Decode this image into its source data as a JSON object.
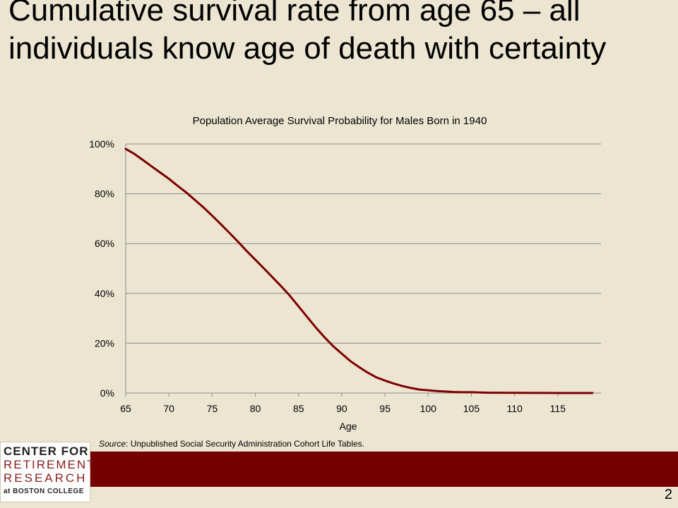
{
  "slide": {
    "title": "Cumulative survival rate from age 65 – all individuals know age of death with certainty",
    "page_number": "2",
    "source_prefix": "Source",
    "source_text": ": Unpublished Social Security Administration Cohort Life Tables."
  },
  "logo": {
    "line1": "CENTER FOR",
    "line2": "RETIREMENT",
    "line3": "RESEARCH",
    "line4": "at BOSTON COLLEGE"
  },
  "colors": {
    "background": "#ebe5d1",
    "series_line": "#7f0000",
    "gridline": "#8c8c8c",
    "footer_band": "#750000"
  },
  "chart_data": {
    "type": "line",
    "title": "Population Average Survival Probability for Males Born in 1940",
    "xlabel": "Age",
    "ylabel": "",
    "xlim": [
      65,
      120
    ],
    "ylim": [
      0,
      1
    ],
    "x_ticks": [
      65,
      70,
      75,
      80,
      85,
      90,
      95,
      100,
      105,
      110,
      115
    ],
    "y_ticks": [
      0,
      0.2,
      0.4,
      0.6,
      0.8,
      1.0
    ],
    "y_tick_labels": [
      "0%",
      "20%",
      "40%",
      "60%",
      "80%",
      "100%"
    ],
    "grid": true,
    "legend": "none",
    "series": [
      {
        "x": [
          65,
          66,
          67,
          68,
          69,
          70,
          71,
          72,
          73,
          74,
          75,
          76,
          77,
          78,
          79,
          80,
          81,
          82,
          83,
          84,
          85,
          86,
          87,
          88,
          89,
          90,
          91,
          92,
          93,
          94,
          95,
          96,
          97,
          98,
          99,
          100,
          101,
          102,
          103,
          104,
          105,
          106,
          107,
          108,
          110,
          115,
          119
        ],
        "y": [
          0.98,
          0.96,
          0.935,
          0.91,
          0.885,
          0.86,
          0.832,
          0.805,
          0.775,
          0.745,
          0.712,
          0.678,
          0.643,
          0.607,
          0.57,
          0.535,
          0.5,
          0.464,
          0.428,
          0.39,
          0.348,
          0.305,
          0.263,
          0.224,
          0.188,
          0.158,
          0.128,
          0.104,
          0.082,
          0.063,
          0.05,
          0.038,
          0.028,
          0.02,
          0.014,
          0.011,
          0.008,
          0.006,
          0.004,
          0.003,
          0.003,
          0.002,
          0.001,
          0.001,
          0.0005,
          0.0,
          0.0
        ]
      }
    ]
  }
}
